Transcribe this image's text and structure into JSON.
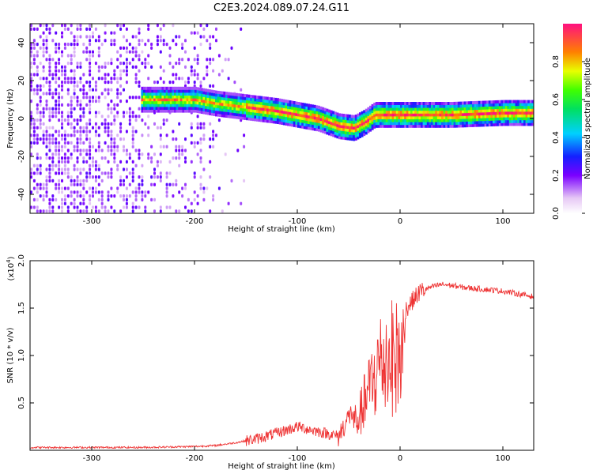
{
  "chart_data": [
    {
      "type": "heatmap",
      "title": "C2E3.2024.089.07.24.G11",
      "xlabel": "Height of straight line (km)",
      "ylabel": "Frequency (Hz)",
      "xlim": [
        -360,
        130
      ],
      "ylim": [
        -50,
        50
      ],
      "xticks": [
        -300,
        -200,
        -100,
        0,
        100
      ],
      "yticks": [
        -40,
        -20,
        0,
        20,
        40
      ],
      "colorbar": {
        "label": "Normalized spectral amplitude",
        "range": [
          0,
          1
        ],
        "ticks": [
          0.0,
          0.2,
          0.4,
          0.6,
          0.8
        ],
        "tick_labels": [
          "0.0",
          "0.2",
          "0.4",
          "0.6",
          "0.8"
        ]
      },
      "trace": {
        "x": [
          -250,
          -200,
          -180,
          -150,
          -120,
          -100,
          -80,
          -60,
          -45,
          -35,
          -25,
          -10,
          0,
          50,
          100,
          130
        ],
        "y": [
          10,
          10,
          8,
          6,
          4,
          2,
          0,
          -4,
          -5,
          -2,
          2,
          2,
          2,
          2,
          3,
          3
        ]
      }
    },
    {
      "type": "line",
      "xlabel": "Height of straight line (km)",
      "ylabel": "SNR (10 * v/v)",
      "multiplier_label": "(x10",
      "multiplier_exp": "4",
      "multiplier_close": ")",
      "xlim": [
        -360,
        130
      ],
      "ylim": [
        0,
        2.0
      ],
      "xticks": [
        -300,
        -200,
        -100,
        0,
        100
      ],
      "yticks": [
        0.5,
        1.0,
        1.5,
        2.0
      ],
      "ytick_labels": [
        "0.5",
        "1.0",
        "1.5",
        "2.0"
      ],
      "series": [
        {
          "name": "SNR",
          "color": "#ee3333",
          "x": [
            -360,
            -300,
            -250,
            -200,
            -180,
            -160,
            -140,
            -120,
            -100,
            -80,
            -60,
            -50,
            -40,
            -30,
            -20,
            -10,
            0,
            10,
            20,
            30,
            40,
            50,
            60,
            80,
            100,
            120,
            130
          ],
          "y": [
            0.03,
            0.03,
            0.03,
            0.04,
            0.05,
            0.08,
            0.12,
            0.18,
            0.25,
            0.2,
            0.15,
            0.35,
            0.5,
            0.9,
            1.3,
            1.4,
            1.4,
            1.55,
            1.68,
            1.72,
            1.75,
            1.74,
            1.72,
            1.7,
            1.68,
            1.64,
            1.62
          ]
        }
      ]
    }
  ]
}
